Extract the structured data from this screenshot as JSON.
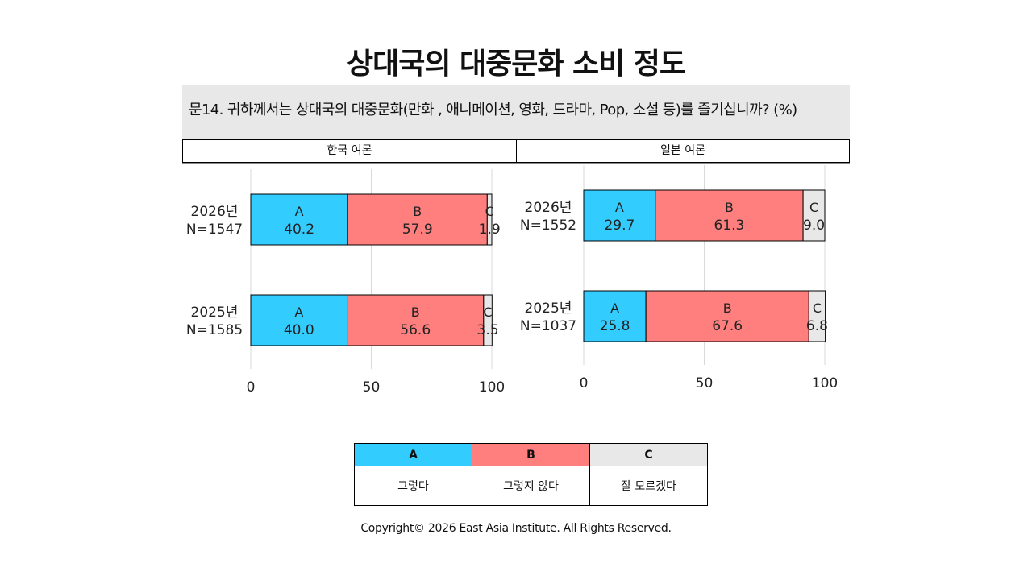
{
  "title": "상대국의 대중문화 소비 정도",
  "question": "문14. 귀하께서는 상대국의 대중문화(만화 , 애니메이션, 영화, 드라마, Pop, 소설 등)를 즐기십니까?  (%)",
  "colors": {
    "A": "#33ccff",
    "B": "#ff7f7f",
    "C": "#e8e8e8"
  },
  "legend": {
    "keys": [
      "A",
      "B",
      "C"
    ],
    "labels": [
      "그렇다",
      "그렇지 않다",
      "잘 모르겠다"
    ]
  },
  "copyright": "Copyright© 2026 East Asia Institute. All Rights Reserved.",
  "chart_data": [
    {
      "type": "bar",
      "title": "한국 여론",
      "orientation": "horizontal",
      "stacked": true,
      "xlim": [
        0,
        100
      ],
      "xticks": [
        "0",
        "50",
        "100"
      ],
      "grid": true,
      "categories": [
        {
          "year": "2026년",
          "n": "N=1547"
        },
        {
          "year": "2025년",
          "n": "N=1585"
        }
      ],
      "series": [
        {
          "name": "A",
          "values": [
            40.2,
            40.0
          ],
          "labels": [
            "40.2",
            "40.0"
          ]
        },
        {
          "name": "B",
          "values": [
            57.9,
            56.6
          ],
          "labels": [
            "57.9",
            "56.6"
          ]
        },
        {
          "name": "C",
          "values": [
            1.9,
            3.5
          ],
          "labels": [
            "1.9",
            "3.5"
          ]
        }
      ]
    },
    {
      "type": "bar",
      "title": "일본 여론",
      "orientation": "horizontal",
      "stacked": true,
      "xlim": [
        0,
        100
      ],
      "xticks": [
        "0",
        "50",
        "100"
      ],
      "grid": true,
      "categories": [
        {
          "year": "2026년",
          "n": "N=1552"
        },
        {
          "year": "2025년",
          "n": "N=1037"
        }
      ],
      "series": [
        {
          "name": "A",
          "values": [
            29.7,
            25.8
          ],
          "labels": [
            "29.7",
            "25.8"
          ]
        },
        {
          "name": "B",
          "values": [
            61.3,
            67.6
          ],
          "labels": [
            "61.3",
            "67.6"
          ]
        },
        {
          "name": "C",
          "values": [
            9.0,
            6.8
          ],
          "labels": [
            "9.0",
            "6.8"
          ]
        }
      ]
    }
  ]
}
